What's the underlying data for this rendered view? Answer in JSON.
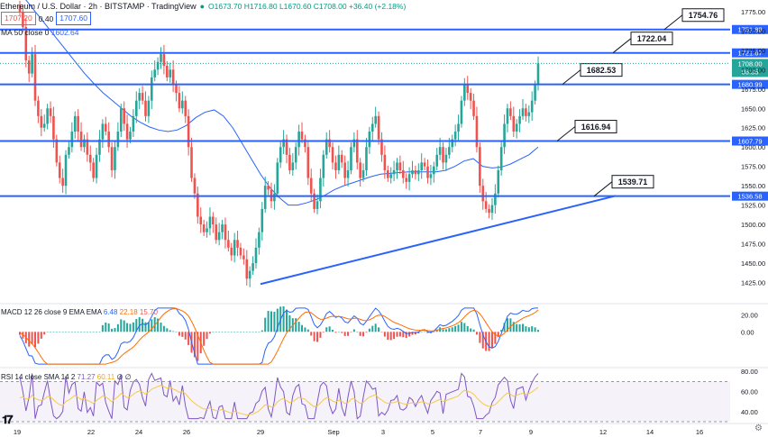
{
  "header": {
    "symbol": "Ethereum / U.S. Dollar · 2h · BITSTAMP · TradingView",
    "sell_price": "1707.20",
    "spread": "0.40",
    "buy_price": "1707.60",
    "ohlc": "O1673.70 H1716.80 L1670.60 C1708.00 +36.40 (+2.18%)"
  },
  "ma_label": {
    "text": "MA 50 close 0",
    "value": "1602.64"
  },
  "macd_label": {
    "text": "MACD 12 26 close 9 EMA EMA",
    "v1": "6.48",
    "v2": "22.18",
    "v3": "15.70"
  },
  "rsi_label": {
    "text": "RSI 14 close SMA 14 2",
    "v1": "71.27",
    "v2": "60.11",
    "v3": "∅",
    "v4": "∅"
  },
  "colors": {
    "bull": "#26a69a",
    "bear": "#ef5350",
    "blue": "#2962ff",
    "ma": "#2962ff",
    "macd_line": "#2962ff",
    "signal_line": "#ff6d00",
    "rsi": "#7e57c2",
    "rsi_ma": "#f7c948"
  },
  "icons": {
    "logo": "tradingview-logo-icon",
    "settings": "gear-icon"
  },
  "chart_data": {
    "type": "candlestick",
    "x_axis_labels": [
      "19",
      "22",
      "24",
      "26",
      "29",
      "Sep",
      "3",
      "5",
      "7",
      "9",
      "12",
      "14",
      "16"
    ],
    "y_axis": {
      "range": [
        1400,
        1790
      ],
      "ticks": [
        1425,
        1450,
        1475,
        1500,
        1525,
        1550,
        1575,
        1600,
        1625,
        1650,
        1675,
        1700,
        1725,
        1750,
        1775
      ],
      "tick_labels": [
        "1425.00",
        "1450.00",
        "1475.00",
        "1500.00",
        "1525.00",
        "1550.00",
        "1575.00",
        "1600.00",
        "1625.00",
        "1650.00",
        "1675.00",
        "1700.00",
        "1725.00",
        "1750.00",
        "1775.00"
      ]
    },
    "horizontal_levels": [
      {
        "price": 1751.88,
        "axis_label": "1751.88",
        "callout": "1754.76"
      },
      {
        "price": 1721.67,
        "axis_label": "1721.67",
        "callout": "1722.04"
      },
      {
        "price": 1680.99,
        "axis_label": "1680.99",
        "callout": "1682.53"
      },
      {
        "price": 1607.79,
        "axis_label": "1607.79",
        "callout": "1616.94"
      },
      {
        "price": 1536.58,
        "axis_label": "1536.58",
        "callout": "1539.71"
      }
    ],
    "current_price": {
      "price": 1708.0,
      "label": "1708.00",
      "countdown": "06:35"
    },
    "trendline": {
      "from": {
        "label": "29",
        "price": 1423
      },
      "to": {
        "label": "12",
        "price": 1537
      }
    },
    "closes": [
      1775,
      1755,
      1712,
      1695,
      1720,
      1660,
      1640,
      1625,
      1630,
      1650,
      1640,
      1610,
      1580,
      1560,
      1550,
      1590,
      1600,
      1620,
      1640,
      1620,
      1600,
      1610,
      1590,
      1580,
      1560,
      1590,
      1610,
      1630,
      1620,
      1600,
      1570,
      1600,
      1620,
      1650,
      1630,
      1610,
      1620,
      1640,
      1660,
      1670,
      1660,
      1640,
      1660,
      1690,
      1700,
      1710,
      1720,
      1705,
      1690,
      1700,
      1680,
      1670,
      1650,
      1660,
      1640,
      1600,
      1560,
      1540,
      1510,
      1500,
      1490,
      1495,
      1510,
      1500,
      1480,
      1490,
      1500,
      1480,
      1470,
      1460,
      1480,
      1470,
      1460,
      1455,
      1430,
      1440,
      1450,
      1470,
      1490,
      1520,
      1550,
      1545,
      1530,
      1540,
      1580,
      1600,
      1610,
      1590,
      1570,
      1580,
      1600,
      1620,
      1610,
      1600,
      1560,
      1540,
      1520,
      1530,
      1560,
      1590,
      1610,
      1600,
      1580,
      1570,
      1590,
      1580,
      1560,
      1570,
      1600,
      1610,
      1580,
      1560,
      1570,
      1600,
      1620,
      1630,
      1640,
      1610,
      1590,
      1570,
      1560,
      1565,
      1570,
      1580,
      1570,
      1560,
      1555,
      1565,
      1570,
      1565,
      1570,
      1580,
      1575,
      1560,
      1565,
      1575,
      1590,
      1600,
      1580,
      1590,
      1600,
      1610,
      1620,
      1630,
      1660,
      1680,
      1670,
      1660,
      1640,
      1600,
      1550,
      1530,
      1520,
      1515,
      1525,
      1540,
      1570,
      1600,
      1630,
      1650,
      1640,
      1620,
      1630,
      1640,
      1650,
      1640,
      1645,
      1660,
      1680,
      1708
    ],
    "ma50": [
      1800,
      1785,
      1770,
      1755,
      1740,
      1725,
      1710,
      1695,
      1682,
      1670,
      1660,
      1650,
      1640,
      1632,
      1626,
      1622,
      1620,
      1622,
      1628,
      1638,
      1645,
      1648,
      1640,
      1625,
      1605,
      1585,
      1565,
      1548,
      1535,
      1525,
      1525,
      1528,
      1532,
      1538,
      1545,
      1550,
      1554,
      1558,
      1562,
      1565,
      1566,
      1567,
      1568,
      1568,
      1568,
      1568,
      1570,
      1575,
      1582,
      1585,
      1575,
      1573,
      1574,
      1578,
      1584,
      1590,
      1600
    ],
    "macd": {
      "y_ticks": [
        "20.00",
        "0.00"
      ],
      "range": [
        -40,
        30
      ]
    },
    "rsi": {
      "y_ticks": [
        "80.00",
        "60.00",
        "40.00"
      ],
      "upper": 70,
      "lower": 30,
      "range": [
        30,
        82
      ]
    }
  }
}
